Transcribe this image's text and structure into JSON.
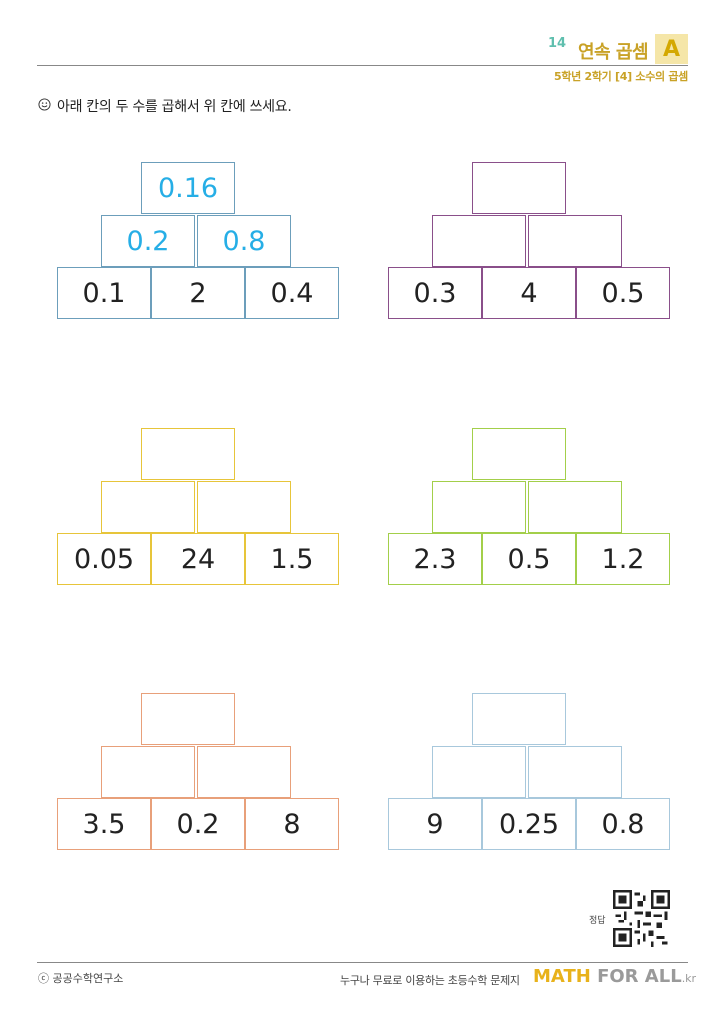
{
  "header": {
    "number": "14",
    "title": "연속 곱셈",
    "badge": "A",
    "subtitle": "5학년 2학기 [4] 소수의 곱셈"
  },
  "instruction": "아래 칸의 두 수를 곱해서 위 칸에 쓰세요.",
  "pyramids": [
    {
      "color": "#6c9ebb",
      "top": "0.16",
      "middle": [
        "0.2",
        "0.8"
      ],
      "bottom": [
        "0.1",
        "2",
        "0.4"
      ]
    },
    {
      "color": "#8a4f8a",
      "top": "",
      "middle": [
        "",
        ""
      ],
      "bottom": [
        "0.3",
        "4",
        "0.5"
      ]
    },
    {
      "color": "#e7c53a",
      "top": "",
      "middle": [
        "",
        ""
      ],
      "bottom": [
        "0.05",
        "24",
        "1.5"
      ]
    },
    {
      "color": "#a3cf4a",
      "top": "",
      "middle": [
        "",
        ""
      ],
      "bottom": [
        "2.3",
        "0.5",
        "1.2"
      ]
    },
    {
      "color": "#e8a07a",
      "top": "",
      "middle": [
        "",
        ""
      ],
      "bottom": [
        "3.5",
        "0.2",
        "8"
      ]
    },
    {
      "color": "#a8c8dc",
      "top": "",
      "middle": [
        "",
        ""
      ],
      "bottom": [
        "9",
        "0.25",
        "0.8"
      ]
    }
  ],
  "qr_label": "정답",
  "footer": {
    "copyright": "ⓒ 공공수학연구소",
    "tagline": "누구나 무료로 이용하는 초등수학 문제지",
    "brand_math": "MATH",
    "brand_forall": "FOR ALL",
    "brand_kr": ".kr"
  }
}
